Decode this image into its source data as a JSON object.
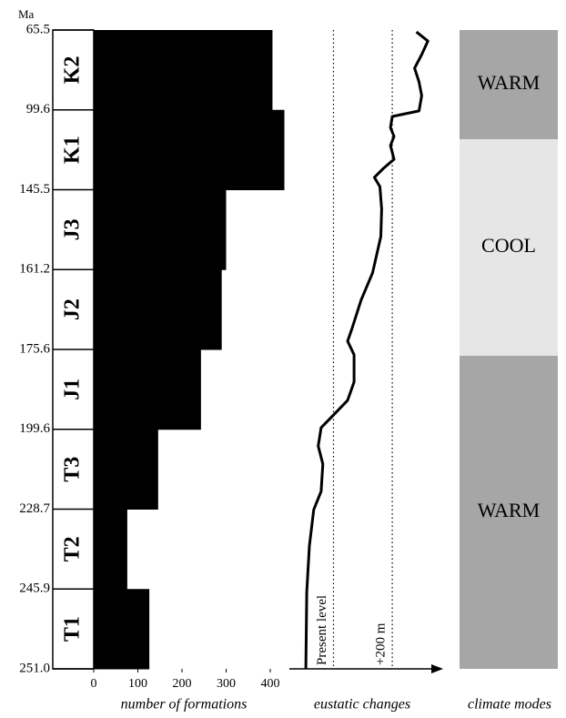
{
  "chart_data": [
    {
      "type": "bar",
      "ylabel": "Ma",
      "yticks": [
        65.5,
        99.6,
        145.5,
        161.2,
        175.6,
        199.6,
        228.7,
        245.9,
        {
          "value": 251,
          "label": "251.0"
        }
      ],
      "categories": [
        "K2",
        "K1",
        "J3",
        "J2",
        "J1",
        "T3",
        "T2",
        "T1"
      ],
      "values": [
        405,
        432,
        300,
        290,
        243,
        146,
        76,
        126
      ],
      "color": "#000000",
      "xlim": [
        0,
        400
      ],
      "xticks": [
        0,
        100,
        200,
        300,
        400
      ],
      "xlabel": "number of formations"
    },
    {
      "type": "line",
      "xlabel": "eustatic changes",
      "color": "#000000",
      "x": [
        66.3,
        70.2,
        76.0,
        81.8,
        87.7,
        93.5,
        100.2,
        103.4,
        109.7,
        114.9,
        120.1,
        128.0,
        133.2,
        138.4,
        143.7,
        149.3,
        154.7,
        161.8,
        166.7,
        171.7,
        174.1,
        177.2,
        185.4,
        190.9,
        196.4,
        199.1,
        205.7,
        212.3,
        222.2,
        228.8,
        236.6,
        246.1,
        251.0
      ],
      "values": [
        282,
        321,
        300,
        276,
        291,
        300,
        291,
        200,
        194,
        206,
        194,
        206,
        170,
        139,
        158,
        164,
        161,
        133,
        94,
        64,
        48,
        70,
        70,
        48,
        -12,
        -42,
        -52,
        -36,
        -42,
        -67,
        -82,
        -91,
        -94
      ],
      "xlim": [
        -150,
        370
      ],
      "reference_lines": [
        {
          "value": 0,
          "label": "Present level"
        },
        {
          "value": 200,
          "label": "+200 m"
        }
      ]
    },
    {
      "type": "band",
      "xlabel": "climate modes",
      "bands": [
        {
          "label": "WARM",
          "from": 65.5,
          "to": 116.5,
          "color": "#a6a6a6"
        },
        {
          "label": "COOL",
          "from": 116.5,
          "to": 177.5,
          "color": "#e6e6e6"
        },
        {
          "label": "WARM",
          "from": 177.5,
          "to": 251,
          "color": "#a6a6a6"
        }
      ]
    }
  ]
}
